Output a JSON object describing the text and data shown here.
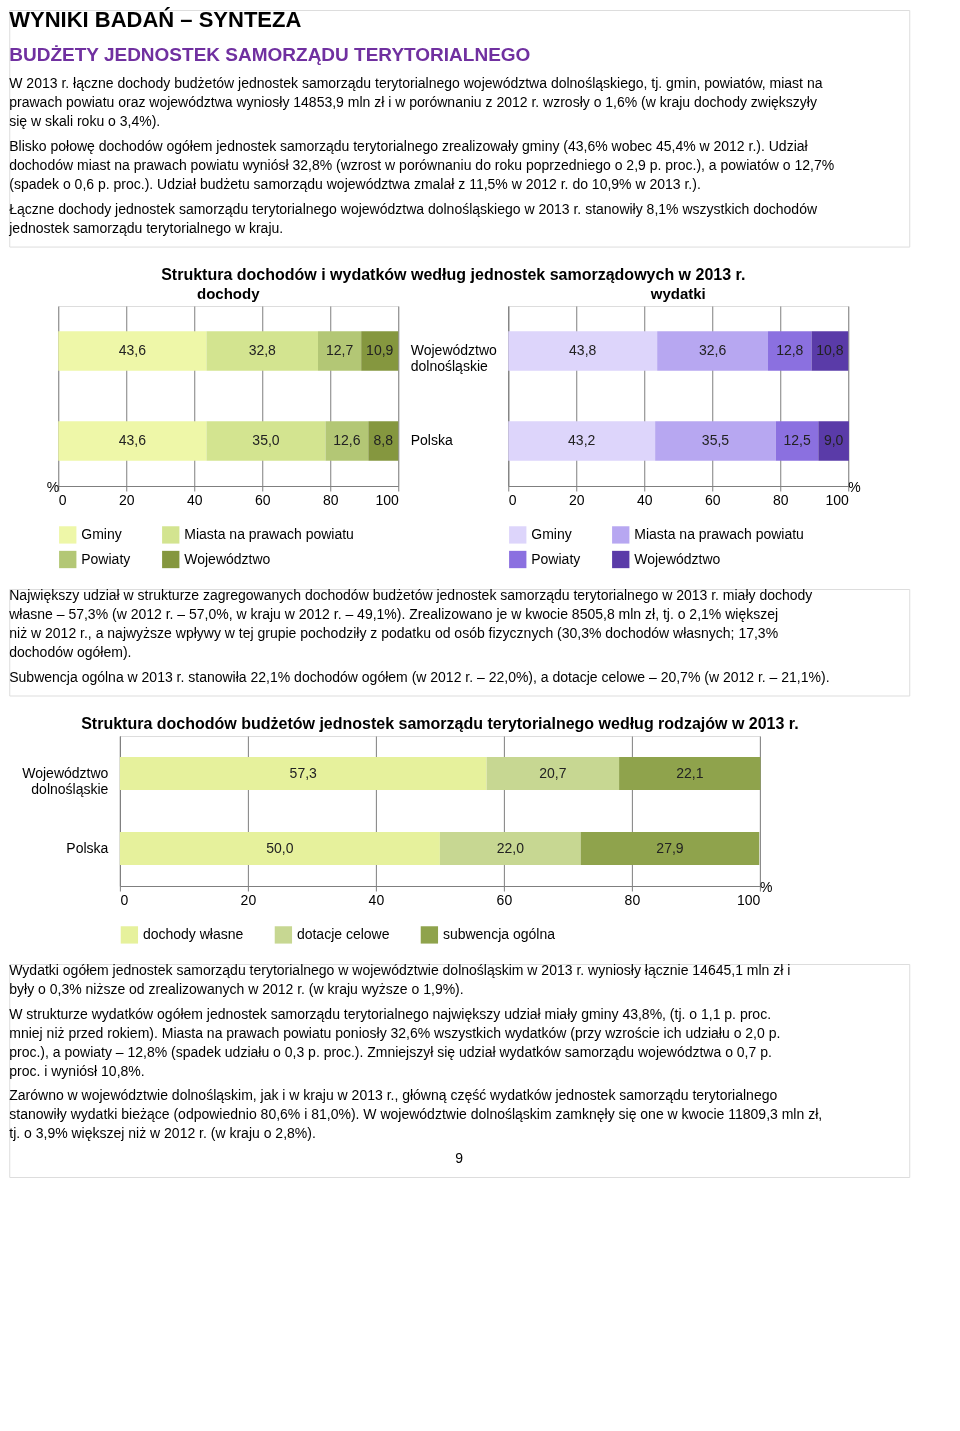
{
  "chart_data": [
    {
      "type": "bar",
      "orientation": "horizontal",
      "stacked": true,
      "title": "Struktura dochodów i wydatków według jednostek samorządowych w 2013 r.",
      "subtitle": "dochody",
      "xlabel": "%",
      "annotations": [
        "WYNIKI BADAŃ – SYNTEZA",
        "BUDŻETY JEDNOSTEK SAMORZĄDU TERYTORIALNEGO",
        "W 2013 r. łączne dochody budżetów jednostek samorządu terytorialnego województwa dolnośląskiego, tj. gmin, powiatów, miast na prawach powiatu oraz województwa wyniosły 14853,9 mln zł i w porównaniu z 2012 r. wzrosły o 1,6% (w kraju dochody zwiększyły się w skali roku o 3,4%).",
        "Blisko połowę dochodów ogółem jednostek samorządu terytorialnego zrealizowały gminy (43,6% wobec 45,4% w 2012 r.). Udział dochodów miast na prawach powiatu wyniósł 32,8% (wzrost w porównaniu do roku poprzedniego o 2,9 p. proc.), a powiatów o 12,7% (spadek o 0,6 p. proc.). Udział budżetu samorządu województwa zmalał z 11,5% w 2012 r. do 10,9% w 2013 r.).",
        "Łączne dochody jednostek samorządu terytorialnego województwa dolnośląskiego w 2013 r. stanowiły 8,1% wszystkich dochodów jednostek samorządu terytorialnego w kraju."
      ],
      "categories": [
        "Województwo dolnośląskie",
        "Polska"
      ],
      "series": [
        {
          "name": "Gminy",
          "color": "#eef7a8",
          "values": [
            43.6,
            43.6
          ],
          "value_labels": [
            "43,6",
            "43,6"
          ]
        },
        {
          "name": "Miasta na prawach powiatu",
          "color": "#d3e490",
          "values": [
            32.8,
            35.0
          ],
          "value_labels": [
            "32,8",
            "35,0"
          ]
        },
        {
          "name": "Powiaty",
          "color": "#b3c775",
          "values": [
            12.7,
            12.6
          ],
          "value_labels": [
            "12,7",
            "12,6"
          ]
        },
        {
          "name": "Województwo",
          "color": "#85973f",
          "values": [
            10.9,
            8.8
          ],
          "value_labels": [
            "10,9",
            "8,8"
          ]
        }
      ],
      "xlim": [
        0,
        100
      ],
      "xticks": [
        0,
        20,
        40,
        60,
        80,
        100
      ],
      "grid": "x",
      "legend": "bottom"
    },
    {
      "type": "bar",
      "orientation": "horizontal",
      "stacked": true,
      "subtitle": "wydatki",
      "xlabel": "%",
      "annotations": [
        "Największy udział w strukturze zagregowanych dochodów budżetów jednostek samorządu terytorialnego w 2013 r. miały dochody własne – 57,3% (w 2012 r. – 57,0%, w kraju w 2012 r. – 49,1%). Zrealizowano je w kwocie 8505,8 mln zł, tj. o 2,1% większej niż w 2012 r., a najwyższe wpływy w tej grupie pochodziły z podatku od osób fizycznych (30,3% dochodów własnych; 17,3% dochodów ogółem).",
        "Subwencja ogólna w 2013 r. stanowiła 22,1% dochodów ogółem (w 2012 r. – 22,0%), a dotacje celowe – 20,7% (w 2012 r. – 21,1%)."
      ],
      "categories": [
        null,
        null
      ],
      "series": [
        {
          "name": "Gminy",
          "color": "#ddd5fb",
          "values": [
            43.8,
            43.2
          ],
          "value_labels": [
            "43,8",
            "43,2"
          ]
        },
        {
          "name": "Miasta na prawach powiatu",
          "color": "#b7a7f1",
          "values": [
            32.6,
            35.5
          ],
          "value_labels": [
            "32,6",
            "35,5"
          ]
        },
        {
          "name": "Powiaty",
          "color": "#8b70e0",
          "values": [
            12.8,
            12.5
          ],
          "value_labels": [
            "12,8",
            "12,5"
          ]
        },
        {
          "name": "Województwo",
          "color": "#5a3ba8",
          "values": [
            10.8,
            9.0
          ],
          "value_labels": [
            "10,8",
            "9,0"
          ]
        }
      ],
      "xlim": [
        0,
        100
      ],
      "xticks": [
        0,
        20,
        40,
        60,
        80,
        100
      ],
      "grid": "x",
      "legend": "bottom",
      "tick_labels": "x"
    },
    {
      "type": "bar",
      "orientation": "horizontal",
      "stacked": true,
      "title": "Struktura dochodów budżetów jednostek samorządu terytorialnego według rodzajów w 2013 r.",
      "xlabel": "%",
      "annotations": [
        "Wydatki ogółem jednostek samorządu terytorialnego w województwie dolnośląskim w 2013 r. wyniosły łącznie 14645,1 mln zł i były o 0,3% niższe od zrealizowanych w 2012 r. (w kraju wyższe o 1,9%).",
        "W strukturze wydatków ogółem jednostek samorządu terytorialnego największy udział miały gminy 43,8%, (tj. o 1,1 p. proc. mniej niż przed rokiem). Miasta na prawach powiatu poniosły 32,6% wszystkich wydatków (przy wzroście ich udziału o 2,0 p. proc.), a powiaty – 12,8% (spadek udziału o 0,3 p. proc.). Zmniejszył się udział wydatków samorządu województwa o 0,7 p. proc. i wyniósł 10,8%.",
        "Zarówno w województwie dolnośląskim, jak i w kraju w 2013 r., główną część wydatków jednostek samorządu terytorialnego stanowiły wydatki bieżące (odpowiednio 80,6% i 81,0%). W województwie dolnośląskim zamknęły się one w kwocie 11809,3 mln zł, tj. o 3,9% większej niż w 2012 r. (w kraju o 2,8%).",
        "9"
      ],
      "categories": [
        "Województwo dolnośląskie",
        "Polska"
      ],
      "series": [
        {
          "name": "dochody własne",
          "color": "#e6f19c",
          "values": [
            57.3,
            50.0
          ],
          "value_labels": [
            "57,3",
            "50,0"
          ]
        },
        {
          "name": "dotacje celowe",
          "color": "#c7d792",
          "values": [
            20.7,
            22.0
          ],
          "value_labels": [
            "20,7",
            "22,0"
          ]
        },
        {
          "name": "subwencja ogólna",
          "color": "#8fa34c",
          "values": [
            22.1,
            27.9
          ],
          "value_labels": [
            "22,1",
            "27,9"
          ]
        }
      ],
      "xlim": [
        0,
        100
      ],
      "xticks": [
        0,
        20,
        40,
        60,
        80,
        100
      ],
      "grid": "x",
      "legend": "bottom"
    }
  ]
}
